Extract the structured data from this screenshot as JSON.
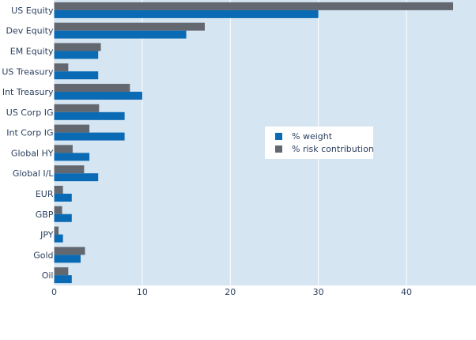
{
  "chart_data": {
    "type": "bar",
    "orientation": "horizontal",
    "categories": [
      "US Equity",
      "Dev Equity",
      "EM Equity",
      "US Treasury",
      "Int Treasury",
      "US Corp IG",
      "Int Corp IG",
      "Global HY",
      "Global I/L",
      "EUR",
      "GBP",
      "JPY",
      "Gold",
      "Oil"
    ],
    "series": [
      {
        "name": "% weight",
        "color": "#0a6ab3",
        "values": [
          30,
          15,
          5,
          5,
          10,
          8,
          8,
          4,
          5,
          2,
          2,
          1,
          3,
          2
        ]
      },
      {
        "name": "% risk contribution",
        "color": "#636870",
        "values": [
          45.3,
          17.1,
          5.3,
          1.6,
          8.6,
          5.1,
          4.0,
          2.1,
          3.4,
          1.0,
          0.9,
          0.5,
          3.5,
          1.6
        ]
      }
    ],
    "xlim": [
      0,
      47.9
    ],
    "xticks": [
      0,
      10,
      20,
      30,
      40
    ],
    "grid": "vertical",
    "legend_position": "middle-right",
    "plot_background": "#d5e5f2"
  }
}
